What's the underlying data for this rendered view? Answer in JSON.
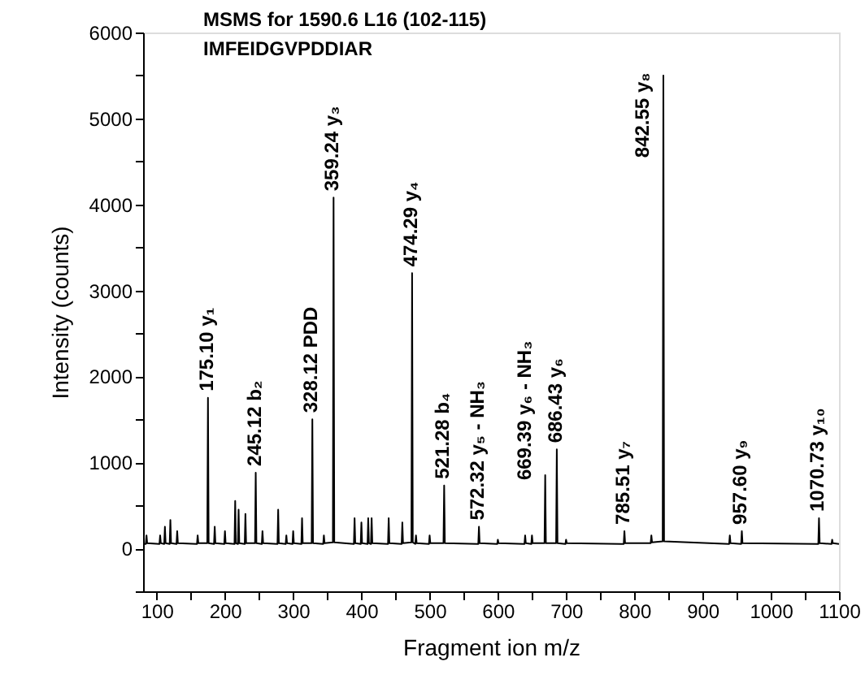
{
  "chart_data": {
    "type": "line",
    "title": "MSMS for 1590.6 L16 (102-115)",
    "subtitle": "IMFEIDGVPDDIAR",
    "xlabel": "Fragment ion m/z",
    "ylabel": "Intensity (counts)",
    "x": [
      80,
      84,
      85,
      86,
      104,
      105,
      106,
      111,
      112,
      113,
      119,
      120,
      121,
      129,
      130,
      131,
      159,
      160,
      161,
      174.1,
      175.1,
      176.1,
      184,
      185,
      186,
      199,
      200,
      201,
      214,
      215,
      216,
      219,
      220,
      221,
      229,
      230,
      231,
      244.1,
      245.1,
      246.1,
      254,
      255,
      256,
      277,
      278,
      279,
      289,
      290,
      291,
      299,
      300,
      301,
      312,
      313,
      314,
      327.1,
      328.1,
      329.1,
      344,
      345,
      346,
      358.2,
      359.2,
      360.2,
      389,
      390,
      391,
      399,
      400,
      401,
      409,
      410,
      411,
      414,
      415,
      416,
      439,
      440,
      441,
      459,
      460,
      461,
      473.3,
      474.3,
      475.3,
      479,
      480,
      481,
      499,
      500,
      501,
      520.3,
      521.3,
      522.3,
      571.3,
      572.3,
      573.3,
      599,
      600,
      601,
      639,
      640,
      641,
      649,
      650,
      651,
      668.4,
      669.4,
      670.4,
      685.4,
      686.4,
      687.4,
      699,
      700,
      701,
      784.5,
      785.5,
      786.5,
      824,
      825,
      826,
      841.6,
      842.6,
      843.6,
      939,
      940,
      941,
      956.6,
      957.6,
      958.6,
      1069.7,
      1070.7,
      1071.7,
      1089,
      1090,
      1091,
      1100
    ],
    "series": [
      {
        "color": "#000000",
        "values": [
          50,
          50,
          150,
          60,
          50,
          150,
          60,
          50,
          250,
          60,
          50,
          330,
          60,
          50,
          200,
          60,
          50,
          150,
          60,
          60,
          1750,
          60,
          50,
          250,
          60,
          50,
          200,
          60,
          50,
          550,
          60,
          50,
          450,
          60,
          50,
          400,
          60,
          60,
          880,
          60,
          50,
          200,
          60,
          50,
          450,
          60,
          50,
          150,
          60,
          50,
          200,
          60,
          50,
          350,
          60,
          60,
          1500,
          60,
          50,
          150,
          60,
          70,
          4080,
          70,
          50,
          350,
          60,
          50,
          300,
          60,
          50,
          350,
          60,
          50,
          350,
          60,
          50,
          350,
          60,
          50,
          300,
          60,
          70,
          3200,
          70,
          50,
          150,
          60,
          50,
          150,
          60,
          60,
          730,
          60,
          50,
          250,
          60,
          50,
          100,
          60,
          50,
          150,
          60,
          50,
          150,
          60,
          60,
          850,
          60,
          60,
          1150,
          60,
          50,
          100,
          60,
          50,
          200,
          60,
          60,
          150,
          70,
          80,
          5500,
          80,
          50,
          150,
          60,
          50,
          200,
          60,
          50,
          350,
          60,
          50,
          100,
          60,
          50
        ]
      }
    ],
    "xlim": [
      80,
      1100
    ],
    "ylim": [
      -500,
      6000
    ],
    "xticks": [
      100,
      {
        "value": 150,
        "label": null
      },
      200,
      {
        "value": 250,
        "label": null
      },
      300,
      {
        "value": 350,
        "label": null
      },
      400,
      {
        "value": 450,
        "label": null
      },
      500,
      {
        "value": 550,
        "label": null
      },
      600,
      {
        "value": 650,
        "label": null
      },
      700,
      {
        "value": 750,
        "label": null
      },
      800,
      {
        "value": 850,
        "label": null
      },
      900,
      {
        "value": 950,
        "label": null
      },
      1000,
      {
        "value": 1050,
        "label": null
      },
      1100
    ],
    "yticks": [
      {
        "value": -500,
        "label": null
      },
      0,
      {
        "value": 500,
        "label": null
      },
      1000,
      {
        "value": 1500,
        "label": null
      },
      2000,
      {
        "value": 2500,
        "label": null
      },
      3000,
      {
        "value": 3500,
        "label": null
      },
      4000,
      {
        "value": 4500,
        "label": null
      },
      5000,
      {
        "value": 5500,
        "label": null
      },
      6000
    ],
    "annotations": [
      {
        "text": "175.10 y₁",
        "x": 175.1,
        "y": 1750
      },
      {
        "text": "245.12 b₂",
        "x": 245.1,
        "y": 880
      },
      {
        "text": "328.12 PDD",
        "x": 328.1,
        "y": 1500
      },
      {
        "text": "359.24 y₃",
        "x": 359.2,
        "y": 4080
      },
      {
        "text": "474.29 y₄",
        "x": 474.3,
        "y": 3200
      },
      {
        "text": "521.28 b₄",
        "x": 521.3,
        "y": 730
      },
      {
        "text": "572.32 y₅ - NH₃",
        "x": 572.3,
        "y": 250
      },
      {
        "text": "669.39 y₆ - NH₃",
        "x": 669.4,
        "y": 850
      },
      {
        "text": "686.43 y₆",
        "x": 686.4,
        "y": 1150
      },
      {
        "text": "785.51 y₇",
        "x": 785.5,
        "y": 200
      },
      {
        "text": "842.55 y₈",
        "x": 842.6,
        "y": 4600
      },
      {
        "text": "957.60 y₉",
        "x": 957.6,
        "y": 200
      },
      {
        "text": "1070.73 y₁₀",
        "x": 1070.7,
        "y": 350
      }
    ],
    "grid": false,
    "legend": false,
    "marker": "none",
    "line_style": "solid"
  }
}
